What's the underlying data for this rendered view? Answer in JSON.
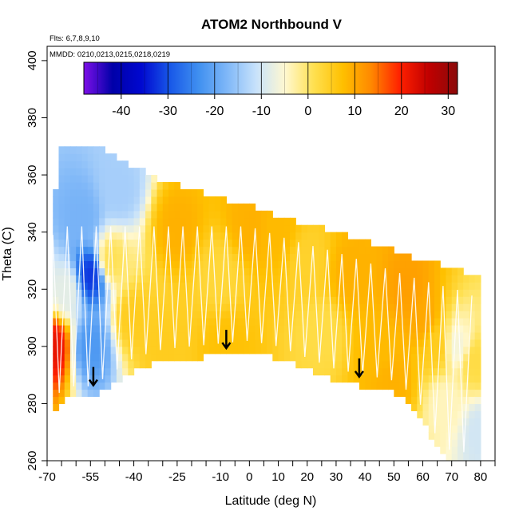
{
  "chart_data": {
    "type": "heatmap",
    "title": "ATOM2 Northbound V",
    "flights_note": "Flts: 6,7,8,9,10",
    "dates_note": "MMDD: 0210,0213,0215,0218,0219",
    "xlabel": "Latitude (deg N)",
    "ylabel": "Theta (C)",
    "xlim": [
      -70,
      85
    ],
    "ylim": [
      260,
      405
    ],
    "x_tick_labels": [
      "-70",
      "-55",
      "-40",
      "-25",
      "-10",
      "0",
      "10",
      "20",
      "30",
      "40",
      "50",
      "60",
      "70",
      "80"
    ],
    "x_tick_values": [
      -70,
      -55,
      -40,
      -25,
      -10,
      0,
      10,
      20,
      30,
      40,
      50,
      60,
      70,
      80
    ],
    "x_minor_ticks": [
      -65,
      -60,
      -50,
      -45,
      -35,
      -30,
      -20,
      -15,
      -5,
      5,
      15,
      25,
      35,
      45,
      55,
      65,
      75,
      85
    ],
    "y_tick_labels": [
      "260",
      "280",
      "300",
      "320",
      "340",
      "360",
      "380",
      "400"
    ],
    "y_tick_values": [
      260,
      280,
      300,
      320,
      340,
      360,
      380,
      400
    ],
    "colorbar": {
      "ticks": [
        -40,
        -30,
        -20,
        -10,
        0,
        10,
        20,
        30
      ],
      "tick_labels": [
        "-40",
        "-30",
        "-20",
        "-10",
        "0",
        "10",
        "20",
        "30"
      ],
      "range": [
        -48,
        32
      ],
      "gradient_colors": [
        "#7d10e8",
        "#0000a8",
        "#0008d0",
        "#1858e8",
        "#4090f0",
        "#80b8f8",
        "#c8e2fb",
        "#fff8d0",
        "#ffe050",
        "#ffc000",
        "#ff8800",
        "#ff2000",
        "#c00000",
        "#8a0a0a"
      ]
    },
    "data_region": {
      "lat_range": [
        -68,
        80
      ],
      "theta_bottom": [
        [
          -68,
          278
        ],
        [
          -64,
          283
        ],
        [
          -55,
          283
        ],
        [
          -50,
          286
        ],
        [
          -40,
          293
        ],
        [
          -30,
          296
        ],
        [
          -20,
          297
        ],
        [
          -10,
          298
        ],
        [
          0,
          299
        ],
        [
          10,
          297
        ],
        [
          20,
          293
        ],
        [
          30,
          289
        ],
        [
          40,
          287
        ],
        [
          50,
          285
        ],
        [
          58,
          279
        ],
        [
          65,
          265
        ],
        [
          70,
          260
        ],
        [
          80,
          260
        ]
      ],
      "theta_top": [
        [
          -68,
          345
        ],
        [
          -65,
          370
        ],
        [
          -55,
          370
        ],
        [
          -45,
          364
        ],
        [
          -30,
          357
        ],
        [
          -15,
          352
        ],
        [
          0,
          348
        ],
        [
          15,
          343
        ],
        [
          30,
          339
        ],
        [
          45,
          334
        ],
        [
          60,
          329
        ],
        [
          75,
          325
        ],
        [
          80,
          322
        ]
      ]
    },
    "wind_field_points": [
      {
        "lat": -68,
        "theta": 300,
        "v": 22
      },
      {
        "lat": -63,
        "theta": 320,
        "v": -8
      },
      {
        "lat": -58,
        "theta": 345,
        "v": -18
      },
      {
        "lat": -55,
        "theta": 325,
        "v": -32
      },
      {
        "lat": -55,
        "theta": 300,
        "v": -22
      },
      {
        "lat": -48,
        "theta": 330,
        "v": 1
      },
      {
        "lat": -45,
        "theta": 355,
        "v": -14
      },
      {
        "lat": -40,
        "theta": 310,
        "v": 5
      },
      {
        "lat": -30,
        "theta": 300,
        "v": 5
      },
      {
        "lat": -25,
        "theta": 342,
        "v": 9
      },
      {
        "lat": -10,
        "theta": 325,
        "v": 3
      },
      {
        "lat": -8,
        "theta": 301,
        "v": 7
      },
      {
        "lat": 0,
        "theta": 342,
        "v": 9
      },
      {
        "lat": 10,
        "theta": 340,
        "v": 8
      },
      {
        "lat": 20,
        "theta": 330,
        "v": 4
      },
      {
        "lat": 25,
        "theta": 305,
        "v": 2
      },
      {
        "lat": 35,
        "theta": 325,
        "v": 9
      },
      {
        "lat": 45,
        "theta": 300,
        "v": 8
      },
      {
        "lat": 50,
        "theta": 288,
        "v": 9
      },
      {
        "lat": 55,
        "theta": 320,
        "v": 11
      },
      {
        "lat": 60,
        "theta": 310,
        "v": 10
      },
      {
        "lat": 65,
        "theta": 300,
        "v": 5
      },
      {
        "lat": 68,
        "theta": 280,
        "v": -4
      },
      {
        "lat": 72,
        "theta": 300,
        "v": -6
      },
      {
        "lat": 78,
        "theta": 295,
        "v": 2
      },
      {
        "lat": 80,
        "theta": 270,
        "v": -10
      }
    ],
    "arrows": [
      {
        "lat": -54,
        "theta": 290
      },
      {
        "lat": -8,
        "theta": 303
      },
      {
        "lat": 38,
        "theta": 293
      }
    ],
    "flight_track_color": "#ffffff"
  }
}
